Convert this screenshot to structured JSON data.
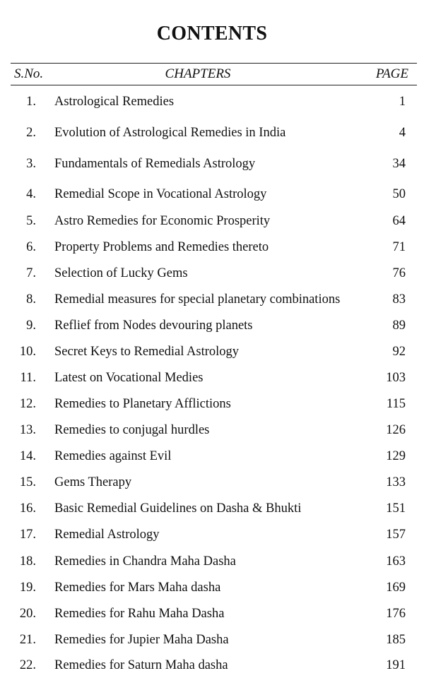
{
  "title": "CONTENTS",
  "headers": {
    "sno": "S.No.",
    "chapters": "CHAPTERS",
    "page": "PAGE"
  },
  "rows": [
    {
      "no": "1.",
      "chapter": "Astrological Remedies",
      "page": "1"
    },
    {
      "no": "2.",
      "chapter": "Evolution of Astrological Remedies in India",
      "page": "4"
    },
    {
      "no": "3.",
      "chapter": "Fundamentals of Remedials Astrology",
      "page": "34"
    },
    {
      "no": "4.",
      "chapter": "Remedial Scope in  Vocational Astrology",
      "page": "50"
    },
    {
      "no": "5.",
      "chapter": "Astro Remedies for Economic Prosperity",
      "page": "64"
    },
    {
      "no": "6.",
      "chapter": "Property Problems and Remedies thereto",
      "page": "71"
    },
    {
      "no": "7.",
      "chapter": "Selection of Lucky Gems",
      "page": "76"
    },
    {
      "no": "8.",
      "chapter": "Remedial measures for special planetary combinations",
      "page": "83"
    },
    {
      "no": "9.",
      "chapter": "Reflief from Nodes devouring planets",
      "page": "89"
    },
    {
      "no": "10.",
      "chapter": "Secret Keys to Remedial Astrology",
      "page": "92"
    },
    {
      "no": "11.",
      "chapter": "Latest on Vocational Medies",
      "page": "103"
    },
    {
      "no": "12.",
      "chapter": "Remedies to Planetary Afflictions",
      "page": "115"
    },
    {
      "no": "13.",
      "chapter": "Remedies to conjugal hurdles",
      "page": "126"
    },
    {
      "no": "14.",
      "chapter": "Remedies against Evil",
      "page": "129"
    },
    {
      "no": "15.",
      "chapter": "Gems Therapy",
      "page": "133"
    },
    {
      "no": "16.",
      "chapter": "Basic Remedial Guidelines on Dasha & Bhukti",
      "page": "151"
    },
    {
      "no": "17.",
      "chapter": "Remedial Astrology",
      "page": "157"
    },
    {
      "no": "18.",
      "chapter": "Remedies in Chandra Maha Dasha",
      "page": "163"
    },
    {
      "no": "19.",
      "chapter": "Remedies for Mars Maha dasha",
      "page": "169"
    },
    {
      "no": "20.",
      "chapter": "Remedies for Rahu  Maha  Dasha",
      "page": "176"
    },
    {
      "no": "21.",
      "chapter": "Remedies for Jupier Maha Dasha",
      "page": "185"
    },
    {
      "no": "22.",
      "chapter": "Remedies for Saturn Maha dasha",
      "page": "191"
    }
  ]
}
